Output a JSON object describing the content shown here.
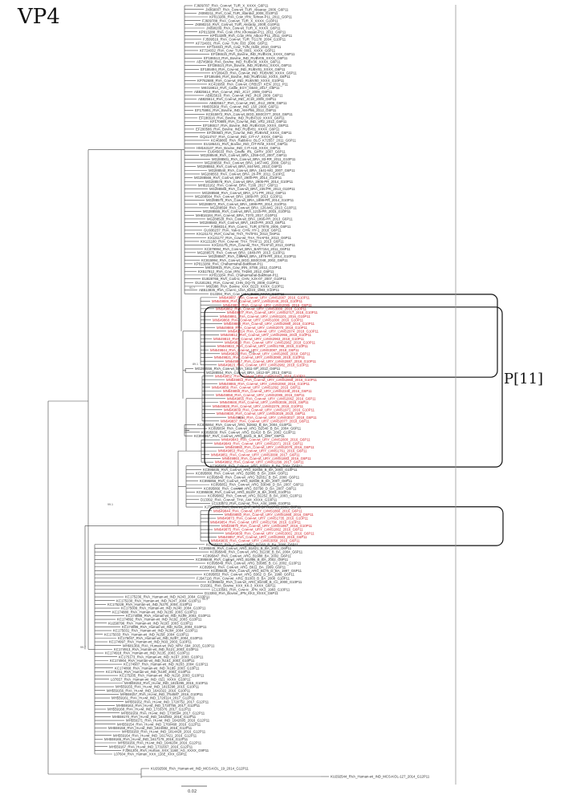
{
  "figure": {
    "title": "VP4",
    "clade_label": "P[11]",
    "scale_bar": "0.02",
    "colors": {
      "branch": "#444444",
      "reference": "#333333",
      "highlight": "#d2232a",
      "box": "#111111",
      "bracket": "#9a9a9a"
    }
  },
  "tip_groups": [
    {
      "highlighted": false,
      "labels": [
        "FJ609787_RVA_Cow-wt_TUR_X_XXXX_G6P11",
        "JX869007_RVA_Cow-wt_TUR_Aksaray_2006_G6P11",
        "JX890211_RVA_Cow_TUR_Istanbul_2008_G10P11",
        "KP013286_RVA_Cow_IRN_Tehran-P11_2011_G6P11",
        "FJ609788_RVA_Cow-wt_TUR_X_XXXX_G10P11",
        "JX890210_RVA_Cow-wt_TUR_Aksaray_2008_G10P11",
        "JX890209_RVA_Cow-wt_TUR_X_XXXX_G6P11",
        "KP013288_RVA_Cow_IRN_Khorasan-P11_2011_G6P11",
        "KP013289_RVA_Cow_IRN_Alborz-P11_2011_G6P11",
        "FJ599516_RVA_Cow-wt_TUR_TG178_2004_G10P11",
        "KF724031_RVA_Cow_TUN_833_2006_G6P11",
        "KF724034_RVA_Cow_TUN_0158_2010_G6P11",
        "KF724032_RVA_Cow_TUN_0001_XXXX_G6P11",
        "EF186515_RVA_Bovine_IND_RUBV26_XXXX_G6P11",
        "EF186513_RVA_Bovine_IND_RUBV05_XXXX_G6P11",
        "AB745869_RVA_Bovine_IND_RUBV36_XXXX_G6P11",
        "EF186514_RVA_Bovine_IND_RUBV51_XXXX_G6P11",
        "EF186494_RVA_Cow-wt_IND_RUBV81_XXXX_G6P11",
        "KY186420_RVA_Cow-wt_IND_RUBV88_XXXX_G6P11",
        "EF186496_RVA_Bovine_IND_RUBV152_XXXX_G6P11",
        "KP762688_RVA_Cow-wt_IND_RUBV80_XXXX_G10P11",
        "KC416950_RVA_Cow-wt_CRB157_KEN_2011_P11",
        "MK019813_RVA_Cattle_EGY_GB40_2017_G6P11",
        "AB825614_RVA_Cow-wt_IND_JC17_2009_G6P11",
        "AB825616_RVA_Cow-wt_IND_Jh18_2009_G6P11",
        "AB825614_RVA_Cow-wt_IND_JC18_2009_G6P11",
        "AB825617_RVA_Cow-wt_IND_Jh12_2009_G6P11",
        "HM035369_RVA_Cow-wt_IND_L58_2008_G6P11",
        "EF175991_RVA_Bovine_IND_AM-P86_2012_G6P11",
        "KC815972_RVA_Cow-wt_BGD_BS0C077_2010_G6P11",
        "EF186516_RVA_Bovine_IND_RUBV319_XXXX_G6P11",
        "KF170898_RVA_Cow-wt_IND_VR2_2012_G6P11",
        "EF186517_RVA_Bovine_IND_RUBV319_XXXX_G6P11",
        "EF200586_RVA_Bovine_IND_RUBV81_XXXX_G6P11",
        "EF200584_RVA_Cow-wt_IND_RUBV53_XXXX_G6P11",
        "GQ414747_RVA_Cow-wt_IND_CIT-A7_XXXX_G6P11",
        "KC469865_RVA_Rabbit-tc_BLO_K72557_2011_G6P11",
        "EU186421_RVA_Bovine_IND_CIT-RA8_XXXX_G6P11",
        "HM163137_RVA_Bovine_IND_CIT-A18_XXXX_G6P11",
        "EU045633_RVA_Giraffe_IRL_GirRV_2007_G6P11",
        "MG288549_RVA_Cow-wt_BRA_1259-GO_2007_G6P11",
        "MG288501_RVA_Cow-wt_BRA_83-RR_2011_G10P11",
        "MG288550_RVA_Cow-wt_BRA_1467-MG_2009_G6P11",
        "MG288553_RVA_Cow-wt_BRA_844-MG_2013_G6P11",
        "MG288540_RVA_Cow-wt_BRA_1641-MG_2007_G6P11",
        "MG288553_RVA_Cow-wt_BRA_20-PR_2011_G10P11",
        "MG288566_RVA_Cow-wt_BRA_2900-PR_2014_G10P11",
        "MG288578_RVA_Cow-wt_BRA_2905-PR_2014_G10P11",
        "MH816162_RVA_Cow-wt_BRA_T199_2017_G6P11",
        "MG288565_RVA_Cow-wt_BRA_235-PR_2013_G10P11",
        "MG288568_RVA_Cow-wt_BRA_171-PR_2012_G6P11",
        "MG288564_RVA_Cow-wt_BRA_1889-PR_2013_G10P11",
        "MG288570_RVA_Cow-wt_BRA_1899-PR_2014_G10P11",
        "MG288572_RVA_Cow-wt_BRA_1899-PR_2014_G10P11",
        "MG288594_RVA_Cow-wt_BRA_126-MG_2013_G10P11",
        "MG288555_RVA_Cow-wt_BRA_1215-PR_2015_G10P11",
        "MH816184_RVA_Cow-wt_BRA_T370_2017_G10P11",
        "MG288528_RVA_Cow-wt_BRA_1896-PR_2013_G6P11",
        "MG288583_RVA_Cow-wt_BRA_1910-PR_2013_G6P11",
        "FJ598314_RVA_Cow-tc_TUR_ET878_2006_G6P11",
        "GU936237_RVA_Yak-tc_CHN_HY-1_2018_G6P11",
        "KX121172_RVA_Cow-wt_THA_THAF01_2013_G6P11",
        "KX121177_RVA_Cow-wt_THA_THAF04_2013_G6P11",
        "KX121180_RVA_Cow-wt_THA_THAF11_2013_G6P11",
        "KX121175_RVA_Cow-wt_THA_THAF10_2013_G6P11",
        "KC879994_RVA_Cow-wt_BRA_BAR7154_2011_G6P11",
        "MG288575_RVA_Cow-wt_BRA_1848-PR_2013_G10P11",
        "MG288567_RVA_Cow-wt_BRA_1879-PR_2014_G10P11",
        "KC815994_RVA_Cow-wt_BGD_BS0C048_2002_G6P11",
        "KP013289_RVA_Chaharmahal-Bakhtiari-P11",
        "MK639915_RVA_Cow_IRN_ST88_2012_G10P11",
        "KX517912_RVA_Cow_IRN_TH290_2012_G6P11",
        "KP013284_RVA_Chaharmahal-Bakhtiari-P11",
        "EU828765_RVA_Cow-tc_CHN_XJX-07_2007_G10P11",
        "GU181261_RVA_Cow-wt_CHN_DQ-75_2008_G10P11",
        "M92986_RVA_Bovine_XXX_B223_XXXX_G10P11",
        "AB513835_RVA_Cow-tc_USA_B223_1983_G10P11",
        "D13394_RVA_Cow_USA_B223_XXXX_G10P11"
      ]
    },
    {
      "highlighted": true,
      "labels": [
        "MN649887_RVA_Cow-wt_URY_LVMS2087_2016_G10P11",
        "MN649889_RVA_Cow-wt_URY_LVMS2049_2016_G10P11",
        "MN649801_RVA_Cow-wt_URY_LVMS2085_2016_G6P11",
        "MN649862_RVA_Cow-wt_URY_LVMS3000_2018_G10P11",
        "MN649807_RVA_Cow-wt_URY_LVMS2717_2018_G10P11",
        "MN649861_RVA_Cow-wt_URY_LVMS1101_2016_G10P11",
        "MN649868_RVA_Cow-wt_URY_LVMS1000_2016_G10P11",
        "MN649863_RVA_Cow-wt_URY_LVMS2989_2018_G10P11",
        "MN649869_RVA_Cow-wt_URY_LVMS2070_2018_G10P11",
        "MN649814_RVA_Cow-wt_URY_LVMS2974_2018_G10P11",
        "MN649812_RVA_Cow-wt_URY_LVMS2955_2018_G10P11",
        "MN649810_RVA_Cow-wt_URY_LVMS2963_2018_G10P11",
        "MN649820_RVA_Cow-wt_URY_LVMS2962_2018_G10P11",
        "MN649822_RVA_Cow-wt_URY_LVMS1788_2016_G10P11",
        "MN649844_RVA_Cow-wt_URY_LVMS3087_2018_G6P11",
        "MN649826_RVA_Cow-wt_URY_LVMS2865_2018_G6P11",
        "MN649821_RVA_Cow-wt_URY_LVMS3080_2018_G10P11",
        "MN649817_RVA_Cow-wt_URY_LVMS2887_2018_G10P11",
        "MN649823_RVA_Cow-wt_URY_LVMS2982_2018_G10P11"
      ]
    },
    {
      "highlighted": false,
      "labels": [
        "MG288556_RVA_Cow-wt_BRA_1811-SP_2012_G6P11",
        "MG288554_RVA_Cow-wt_BRA_1812-SP_2013_G6P11"
      ]
    },
    {
      "highlighted": true,
      "labels": [
        "MN649852_RVA_Cow-wt_URY_LVMS2167_2016_G10P11",
        "MN649853_RVA_Cow-wt_URY_LVMS2868_2016_G10P11",
        "MN649865_RVA_Cow-wt_URY_LVMS2060_2016_G10P11",
        "MN649856_RVA_Cow-wt_URY_LVMS1092_2016_G6P11",
        "MN649859_RVA_Cow-wt_URY_LVMS2348_2016_G6P11",
        "MN649858_RVA_Cow-wt_URY_LVMS2085_2016_G6P11",
        "MN649855_RVA_Cow-wt_URY_LVMS2062_2016_G6P11",
        "MN649848_RVA_Cow-wt_URY_LVMS3036_2016_G6P11",
        "MN649828_RVA_Cow-wt_URY_LVMS2276_2018_G10P11",
        "MN649839_RVA_Cow-wt_URY_LVMS1971_2016_G10P11",
        "MN649830_RVA_Cow-wt_URY_LVMS3029_2018_G6P11",
        "MN649834_RVA_Cow-wt_URY_LVMS3027_2018_G6P11",
        "MN649837_RVA_Cow-wt_URY_LVMS2077_2018_G6P11"
      ]
    },
    {
      "highlighted": false,
      "labels": [
        "KC895864_RVA_Cow-wt_ARG_B2662_B_BA_2004_G10P11",
        "KC895834_RVA_Cow-wt_ARG_B2540_B_BA_2004_G6P11",
        "KC895830_RVA_Cow-wt_ARG_B1410_B_BA_2002_G10P11",
        "KC895857_RVA_Cow-wt_ARG_B161_B_BA_1997_G6P11"
      ]
    },
    {
      "highlighted": true,
      "labels": [
        "MN649843_RVA_Cow-wt_URY_LVMS2800_2016_G6P11",
        "MN649849_RVA_Cow-wt_URY_LVMS2071_2016_G6P11",
        "MN649850_RVA_Cow-wt_URY_LVMS2076_2016_G6P11",
        "MN649853_RVA_Cow-wt_URY_LVMS1761_2016_G6P11",
        "MN649851_RVA_Cow-wt_URY_LVMS3008_2017_G6P11",
        "MN649864_RVA_Cow-wt_URY_LVMS1883_2016_G6P11",
        "MN649862_RVA_Cow-wt_URY_LVMS1299_2017_G6P11"
      ]
    },
    {
      "highlighted": false,
      "labels": [
        "KC895858_RVA_Cow-wt_ARG_B2661_B_BA_2004_G6P11",
        "KC895835_RVA_Cow-wt_ARG_B2655_B_BA_2004_G10P11",
        "KC895866_RVA_Cow-wt_ARG_B2885_B_BA_2004_G6P11",
        "KC895840_RVA_Cow-wt_ARG_B2651_B_BA_2006_G6P11",
        "KC895856_RVA_Cow-wt_ARG_B2838_B_BA_2007_G6P11",
        "KC895851_RVA_Cow-wt_ARG_B3049_D_BA_2007_G6P11",
        "KC895866_RVA_Cow-wt_ARG_B3790_D_BA_2007_G6P11",
        "KC895838_RVA_Cow-wt_ARG_B1197_B_BA_2003_G10P11",
        "KC895862_RVA_Cow-wt_ARG_B1252_B_BA_2003_G10P11",
        "D13392_RVA_Cow-wt_THA_A44_XXXX_G10P11",
        "LC133572_RVA_Cow-wt_THA_A44_1989_G10P11",
        "KJ751625_RVA_Cow-wt_ZAF_MRC-DPRU3705_2008_G6P11"
      ]
    },
    {
      "highlighted": true,
      "labels": [
        "MN649844_RVA_Cow-wt_URY_LVMS1860_2016_G6P11",
        "MN649850_RVA_Cow-wt_URY_LVMS1866_2016_G6P11",
        "MN649873_RVA_Cow-wt_URY_LVMS1735_2016_G10P11",
        "MN649854_RVA_Cow-wt_URY_LVMS1796_2016_G10P11",
        "MN649870_RVA_Cow-wt_URY_LVMS1867_2016_G10P11",
        "MN649875_RVA_Cow-wt_URY_LVMS1862_2016_G6P11",
        "MN649838_RVA_Cow-wt_URY_LVMS3001_2016_G6P11",
        "MN649857_RVA_Cow-wt_URY_LVMS2883_2016_G6P11",
        "MN649835_RVA_Cow-wt_URY_LVMS3058_2016_G6P11"
      ]
    },
    {
      "highlighted": false,
      "labels": [
        "KC895837_RVA_Cow-wt_ARG_B1160_B_BA_2006_G6P11",
        "KC895845_RVA_Cow-wt_ARG_B1621_B_BA_2001_G6P11",
        "KC895846_RVA_Cow-wt_ARG_B1238_B_BA_2004_G6P11",
        "KC895847_RVA_Cow-wt_ARG_B1988_BA_2002_G6P11",
        "KC895848_RVA_Cow-wt_ARG_B1986_B_BA_2002_G6P11",
        "KC895849_RVA_Cow-wt_ARG_B3985_B_Co_2002_G10P11",
        "KC895841_RVA_Cow-wt_ARG_B611_BA_1999_G6P11",
        "KC895836_RVA_Cow-wt_ARG_B175_D_BA_1997_G6P11",
        "KC895853_RVA_Cow-wt_ARG_B362_D_BA_1998_G6P11",
        "FJ347116_RVA_Cow-wt_ARG_B1003_B_BA_2000_G10P11",
        "KC895842_RVA_Cow-wt_ARG_B1038_B_Co_2000_G10P11",
        "D16361_RVA_Bovine_XXX_KK-3_XXXX_G6P11",
        "LC133581_RVA_Cow-tc_JPN_KK3_1983_G10P11",
        "D13393_RVA_Bovine_JPN_KK3_XXXX_G6P11",
        "KC175236_RVA_Human-wt_IND_N243_2004_G10P11",
        "KC175230_RVA_Human-wt_IND_N247_2004_G10P11",
        "KC175228_RVA_Human-wt_IND_N275_2004_G10P11",
        "KC175009_RVA_Human-wt_IND_N240_2004_G10P11",
        "KC174880_RVA_Human-wt_IND_N239_2003_G10P11",
        "KC174888_RVA_Human-wt_IND_N199_2003_G10P11",
        "KC174892_RVA_Human-wt_IND_N192_2003_G10P11",
        "KU290796_RVA_Human-wt_IND_N193_2003_G10P11",
        "KC174896_RVA_Human-wt_IND_N216_2004_G10P11",
        "KC175031_RVA_Human-wt_IND_N284_2004_G10P11",
        "KC175033_RVA_Human-wt_IND_N258_2004_G10P11",
        "KC175047_RVA_Human-wt_IND_N297_2004_G10P11",
        "KC174997_RVA_Human-wt_IND_N93_2003_G10P11",
        "MH681366_RVA_Human-wt_IND_NRV_694_2015_G10P11",
        "KC174913_RVA_Human-wt_IND_N121_2003_G10P11",
        "KC174918_RVA_Human-wt_IND_N135_2003_G10P11",
        "KC175173_RVA_Human-wt_IND_N167_2003_G10P11",
        "KC174904_RVA_Human-wt_IND_N151_2003_G10P11",
        "KC174907_RVA_Human-wt_IND_N203_2004_G10P11",
        "KC174868_RVA_Human-wt_IND_N189_2003_G10P11",
        "KC175151_RVA_Human-wt_IND_N109_2003_G10P11",
        "KC175205_RVA_Human-wt_IND_N218_2003_G10P11",
        "L07657_RVA_Human-wt_IND_I321_XXXX_G10P11",
        "MH559153_RVA_Hu-wt_IND_1815295_2015_G10P11",
        "MH559155_RVA_Hu-wt_IND_1815298_2015_G10P11",
        "MH559156_RVA_Hu-wt_IND_1641022_2016_G10P11",
        "MH559157_RVA_Hu-wt_IND_I754587_2016_G10P11",
        "MH559161_RVA_Hu-wt_IND_1720114_2017_G12P11",
        "MH559162_RVA_Hu-wt_IND_1720752_2017_G12P11",
        "MH559163_RVA_Hu-wt_IND_1720755_2017_G12P11",
        "MH559168_RVA_Hu-wt_IND_1733376_2017_G12P11",
        "MH559169_RVA_Hu-wt_IND_1730594_2017_G12P11",
        "MH559170_RVA_Hu-wt_IND_1642502_2016_G12P11",
        "MH559171_RVA_Hu-wt_IND_1642605_2016_G12P11",
        "MH559154_RVA_Hu-wt_IND_1760468_2016_G12P11",
        "MH559158_RVA_Hu-wt_IND_1824882_2016_G12P11",
        "MH559160_RVA_Hu-wt_IND_1814428_2016_G12P11",
        "MH559164_RVA_Hu-wt_IND_1617421_2016_G12P11",
        "MH559165_RVA_Hu-wt_IND_1617179_2016_G12P11",
        "MH559166_RVA_Hu-wt_IND_1646204_2016_G12P11",
        "MH559167_RVA_Hu-wt_IND_1731657_2016_G12P11",
        "FJ361204_RVA_Human_XXX_116E_AG_XXXX_G9P11",
        "L07604_RVA_Human_XXX_116E_XXX_G9P11"
      ]
    }
  ],
  "outgroup_tips": [
    "KU292566_RVA_Human-wt_IND_MCS-KOL_19_2014_G12P11",
    "KU292544_RVA_Human-wt_IND_MCS-KOL-127_2014_G12P11"
  ],
  "bootstrap": [
    "91.7",
    "89.1",
    "98.4",
    "99.9",
    "100",
    "88.5",
    "99.6",
    "99.3",
    "99.7",
    "99.1",
    "99.4",
    "97.5"
  ]
}
